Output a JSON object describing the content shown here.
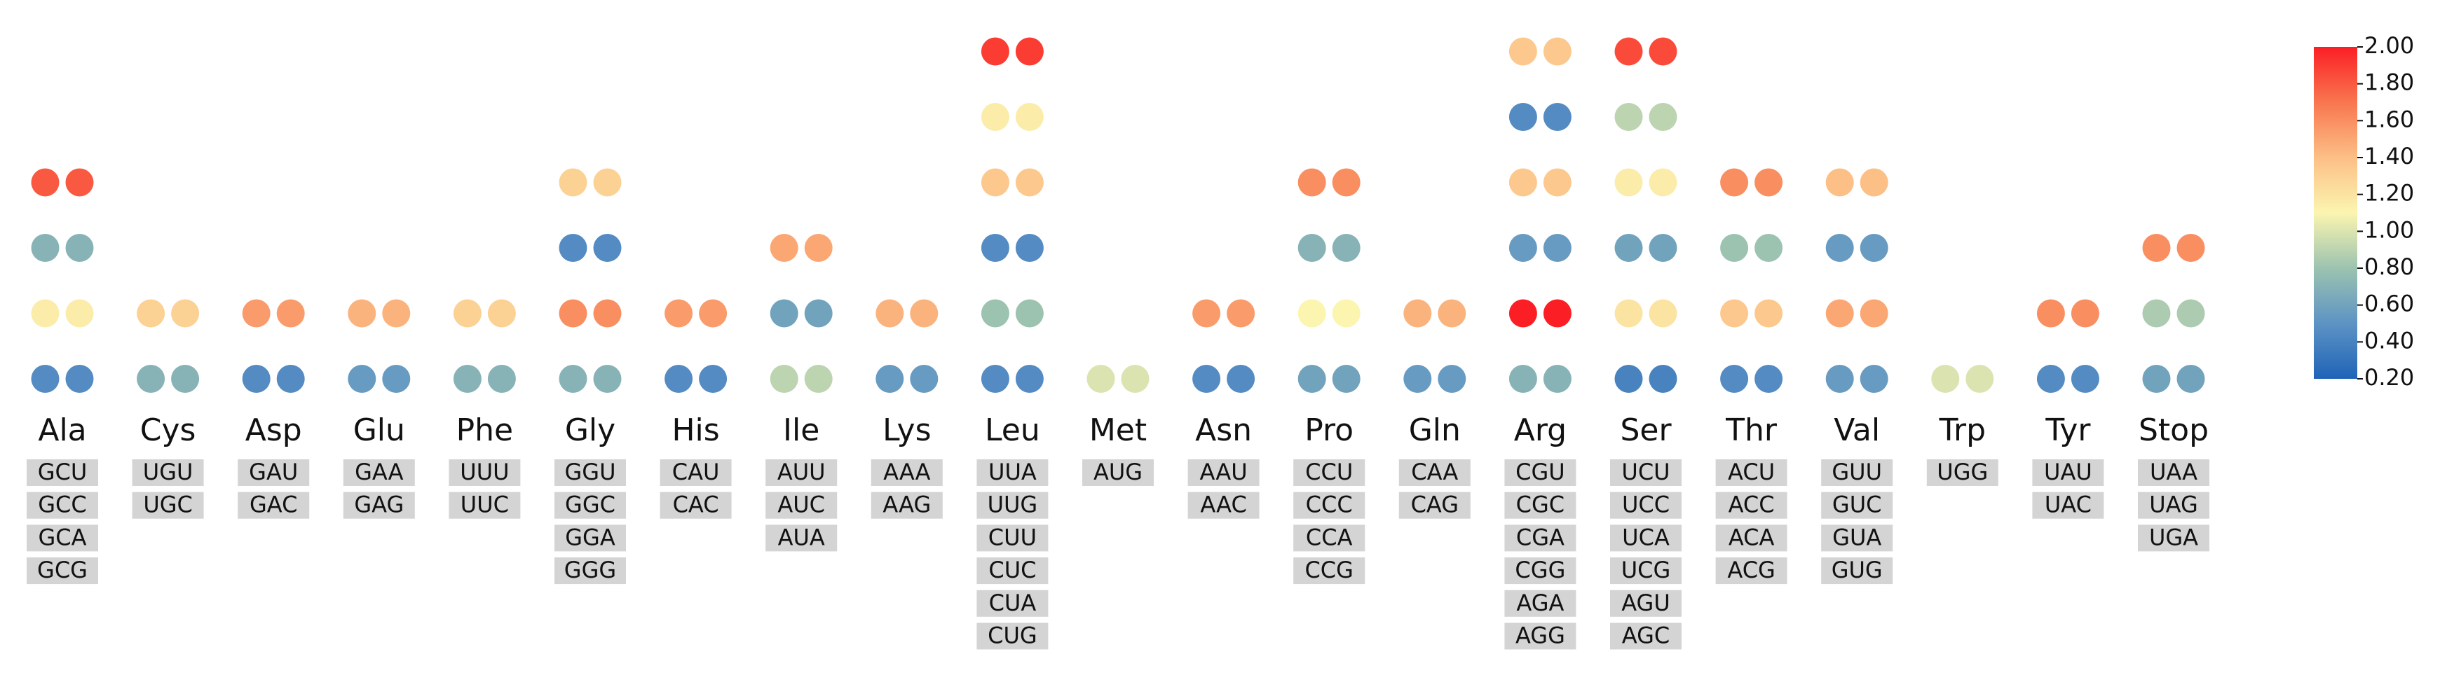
{
  "chart_data": {
    "type": "rscu",
    "categories": [
      "Ala",
      "Cys",
      "Asp",
      "Glu",
      "Phe",
      "Gly",
      "His",
      "Ile",
      "Lys",
      "Leu",
      "Met",
      "Asn",
      "Pro",
      "Gln",
      "Arg",
      "Ser",
      "Thr",
      "Val",
      "Trp",
      "Tyr",
      "Stop"
    ],
    "codons": [
      [
        "GCU",
        "GCC",
        "GCA",
        "GCG"
      ],
      [
        "UGU",
        "UGC"
      ],
      [
        "GAU",
        "GAC"
      ],
      [
        "GAA",
        "GAG"
      ],
      [
        "UUU",
        "UUC"
      ],
      [
        "GGU",
        "GGC",
        "GGA",
        "GGG"
      ],
      [
        "CAU",
        "CAC"
      ],
      [
        "AUU",
        "AUC",
        "AUA"
      ],
      [
        "AAA",
        "AAG"
      ],
      [
        "UUA",
        "UUG",
        "CUU",
        "CUC",
        "CUA",
        "CUG"
      ],
      [
        "AUG"
      ],
      [
        "AAU",
        "AAC"
      ],
      [
        "CCU",
        "CCC",
        "CCA",
        "CCG"
      ],
      [
        "CAA",
        "CAG"
      ],
      [
        "CGU",
        "CGC",
        "CGA",
        "CGG",
        "AGA",
        "AGG"
      ],
      [
        "UCU",
        "UCC",
        "UCA",
        "UCG",
        "AGU",
        "AGC"
      ],
      [
        "ACU",
        "ACC",
        "ACA",
        "ACG"
      ],
      [
        "GUU",
        "GUC",
        "GUA",
        "GUG"
      ],
      [
        "UGG"
      ],
      [
        "UAU",
        "UAC"
      ],
      [
        "UAA",
        "UAG",
        "UGA"
      ]
    ],
    "series": [
      {
        "values": [
          [
            0.45,
            1.15,
            0.7,
            1.8
          ],
          [
            0.7,
            1.3
          ],
          [
            0.45,
            1.55
          ],
          [
            0.55,
            1.45
          ],
          [
            0.7,
            1.3
          ],
          [
            0.7,
            1.6,
            0.45,
            1.3
          ],
          [
            0.45,
            1.55
          ],
          [
            0.9,
            0.6,
            1.5
          ],
          [
            0.55,
            1.45
          ],
          [
            0.45,
            0.8,
            0.45,
            1.35,
            1.15,
            1.9
          ],
          [
            1.0
          ],
          [
            0.45,
            1.55
          ],
          [
            0.6,
            1.1,
            0.7,
            1.6
          ],
          [
            0.55,
            1.45
          ],
          [
            0.7,
            2.0,
            0.55,
            1.35,
            0.45,
            1.35
          ],
          [
            0.4,
            1.2,
            0.6,
            1.15,
            0.9,
            1.85
          ],
          [
            0.45,
            1.35,
            0.8,
            1.6
          ],
          [
            0.55,
            1.5,
            0.55,
            1.4
          ],
          [
            1.0
          ],
          [
            0.45,
            1.6
          ],
          [
            0.6,
            0.85,
            1.6
          ]
        ]
      },
      {
        "values": [
          [
            0.45,
            1.15,
            0.7,
            1.8
          ],
          [
            0.7,
            1.3
          ],
          [
            0.45,
            1.55
          ],
          [
            0.55,
            1.45
          ],
          [
            0.7,
            1.3
          ],
          [
            0.7,
            1.6,
            0.45,
            1.3
          ],
          [
            0.45,
            1.55
          ],
          [
            0.9,
            0.6,
            1.5
          ],
          [
            0.55,
            1.45
          ],
          [
            0.45,
            0.8,
            0.45,
            1.35,
            1.15,
            1.9
          ],
          [
            1.0
          ],
          [
            0.45,
            1.55
          ],
          [
            0.6,
            1.1,
            0.7,
            1.6
          ],
          [
            0.55,
            1.45
          ],
          [
            0.7,
            2.0,
            0.55,
            1.35,
            0.45,
            1.35
          ],
          [
            0.4,
            1.2,
            0.6,
            1.15,
            0.9,
            1.85
          ],
          [
            0.45,
            1.35,
            0.8,
            1.6
          ],
          [
            0.55,
            1.5,
            0.55,
            1.4
          ],
          [
            1.0
          ],
          [
            0.45,
            1.6
          ],
          [
            0.6,
            0.85,
            1.6
          ]
        ]
      }
    ],
    "clim": [
      0.2,
      2.0
    ],
    "cticks": [
      {
        "value": 0.2,
        "label": "0.20"
      },
      {
        "value": 0.4,
        "label": "0.40"
      },
      {
        "value": 0.6,
        "label": "0.60"
      },
      {
        "value": 0.8,
        "label": "0.80"
      },
      {
        "value": 1.0,
        "label": "1.00"
      },
      {
        "value": 1.2,
        "label": "1.20"
      },
      {
        "value": 1.4,
        "label": "1.40"
      },
      {
        "value": 1.6,
        "label": "1.60"
      },
      {
        "value": 1.8,
        "label": "1.80"
      },
      {
        "value": 2.0,
        "label": "2.00"
      }
    ],
    "colormap": [
      "#1f63b8",
      "#5d93c4",
      "#9cc3b0",
      "#fbf5b0",
      "#fcbf86",
      "#f8764f",
      "#fb1f25"
    ]
  }
}
